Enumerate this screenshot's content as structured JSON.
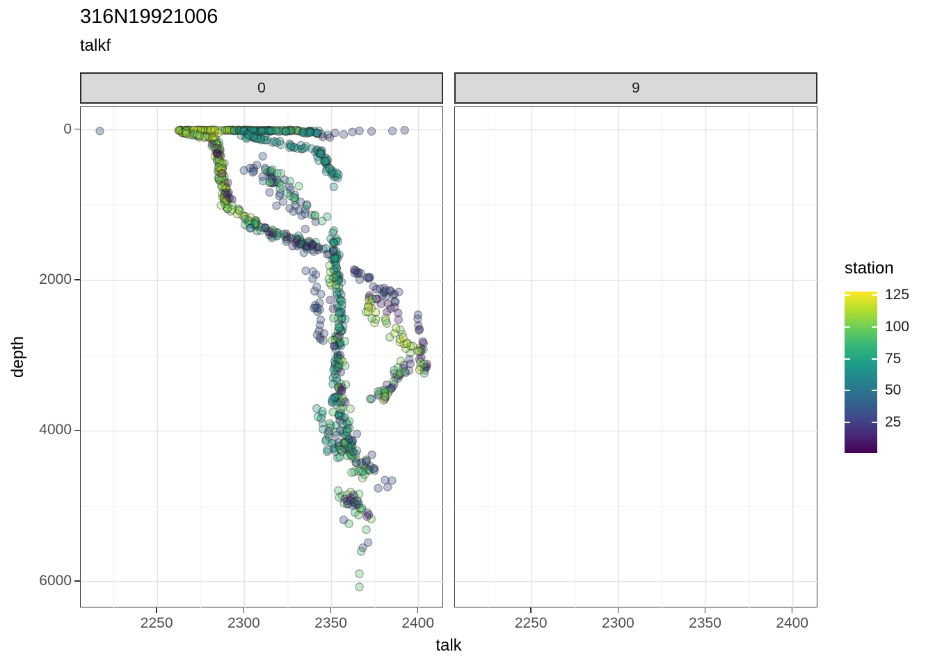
{
  "title": "316N19921006",
  "subtitle": "talkf",
  "x_axis": {
    "label": "talk",
    "ticks": [
      2250,
      2300,
      2350,
      2400
    ]
  },
  "y_axis": {
    "label": "depth",
    "ticks": [
      0,
      2000,
      4000,
      6000
    ]
  },
  "facets": [
    {
      "label": "0"
    },
    {
      "label": "9"
    }
  ],
  "legend": {
    "title": "station",
    "ticks": [
      125,
      100,
      75,
      50,
      25
    ],
    "domain": [
      1,
      128
    ]
  },
  "colors": {
    "viridis_stops": [
      "#440154",
      "#482878",
      "#3e4a89",
      "#31688e",
      "#26828e",
      "#1f9e89",
      "#35b779",
      "#6ece58",
      "#b5de2b",
      "#fde725"
    ],
    "strip_bg": "#d9d9d9",
    "panel_border": "#333333",
    "grid_major": "#e4e4e4",
    "grid_minor": "#efefef",
    "tick_text": "#4d4d4d",
    "point_stroke": "rgba(25,25,25,0.42)"
  },
  "chart_data": {
    "type": "scatter",
    "title": "316N19921006",
    "subtitle": "talkf",
    "xlabel": "talk",
    "ylabel": "depth",
    "color_label": "station",
    "facet_values": [
      "0",
      "9"
    ],
    "xlim": [
      2206,
      2414.5
    ],
    "ylim": [
      -302,
      6353
    ],
    "y_reversed": true,
    "x_minor": [
      2225,
      2275,
      2325,
      2375
    ],
    "y_minor": [
      1000,
      3000,
      5000
    ],
    "point_alpha": 0.35,
    "point_radius": 5.6,
    "seed": 42,
    "facet_0": {
      "clusters": [
        {
          "f": [
            2262,
            3
          ],
          "t": [
            2330,
            6
          ],
          "n": 110,
          "s": [
            3,
            9
          ],
          "st": [
            88,
            124
          ]
        },
        {
          "f": [
            2294,
            10
          ],
          "t": [
            2342,
            18
          ],
          "n": 48,
          "s": [
            4,
            11
          ],
          "st": [
            56,
            78
          ]
        },
        {
          "f": [
            2330,
            25
          ],
          "t": [
            2352,
            65
          ],
          "n": 13,
          "s": [
            3,
            16
          ],
          "st": [
            55,
            75
          ]
        },
        {
          "f": [
            2262,
            15
          ],
          "t": [
            2282,
            120
          ],
          "n": 28,
          "s": [
            3,
            28
          ],
          "st": [
            90,
            122
          ]
        },
        {
          "f": [
            2283,
            80
          ],
          "t": [
            2290,
            1000
          ],
          "n": 85,
          "s": [
            3,
            62
          ],
          "st": [
            92,
            124
          ]
        },
        {
          "f": [
            2283,
            150
          ],
          "t": [
            2293,
            950
          ],
          "n": 12,
          "s": [
            3.5,
            85
          ],
          "st": [
            5,
            16
          ]
        },
        {
          "f": [
            2290,
            1000
          ],
          "t": [
            2310,
            1330
          ],
          "n": 25,
          "s": [
            4,
            60
          ],
          "st": [
            90,
            120
          ]
        },
        {
          "f": [
            2298,
            70
          ],
          "t": [
            2343,
            280
          ],
          "n": 42,
          "s": [
            4.5,
            45
          ],
          "st": [
            56,
            78
          ]
        },
        {
          "f": [
            2343,
            280
          ],
          "t": [
            2354,
            720
          ],
          "n": 34,
          "s": [
            3,
            65
          ],
          "st": [
            56,
            78
          ]
        },
        {
          "f": [
            2300,
            1230
          ],
          "t": [
            2347,
            1620
          ],
          "n": 55,
          "s": [
            5,
            85
          ],
          "st": [
            55,
            100
          ]
        },
        {
          "f": [
            2305,
            1300
          ],
          "t": [
            2345,
            1600
          ],
          "n": 18,
          "s": [
            5,
            80
          ],
          "st": [
            5,
            20
          ]
        },
        {
          "f": [
            2302,
            330
          ],
          "t": [
            2340,
            1250
          ],
          "n": 44,
          "s": [
            9,
            170
          ],
          "st": [
            26,
            44
          ]
        },
        {
          "f": [
            2306,
            420
          ],
          "t": [
            2344,
            1150
          ],
          "n": 22,
          "s": [
            8,
            150
          ],
          "st": [
            80,
            96
          ]
        },
        {
          "f": [
            2336,
            1500
          ],
          "t": [
            2346,
            2950
          ],
          "n": 26,
          "s": [
            3.5,
            130
          ],
          "st": [
            26,
            40
          ]
        },
        {
          "f": [
            2351,
            1350
          ],
          "t": [
            2356,
            2600
          ],
          "n": 68,
          "s": [
            2.6,
            95
          ],
          "st": [
            60,
            78
          ]
        },
        {
          "f": [
            2354,
            2600
          ],
          "t": [
            2352,
            3620
          ],
          "n": 52,
          "s": [
            2.6,
            85
          ],
          "st": [
            60,
            78
          ]
        },
        {
          "f": [
            2354,
            3620
          ],
          "t": [
            2361,
            4280
          ],
          "n": 33,
          "s": [
            3,
            75
          ],
          "st": [
            60,
            80
          ]
        },
        {
          "f": [
            2349,
            1500
          ],
          "t": [
            2359,
            4050
          ],
          "n": 28,
          "s": [
            4,
            220
          ],
          "st": [
            86,
            112
          ]
        },
        {
          "f": [
            2349,
            1650
          ],
          "t": [
            2357,
            3850
          ],
          "n": 13,
          "s": [
            4,
            220
          ],
          "st": [
            6,
            18
          ]
        },
        {
          "f": [
            2359,
            1850
          ],
          "t": [
            2393,
            2320
          ],
          "n": 28,
          "s": [
            5,
            95
          ],
          "st": [
            20,
            36
          ]
        },
        {
          "f": [
            2364,
            2050
          ],
          "t": [
            2399,
            2650
          ],
          "n": 11,
          "s": [
            5,
            120
          ],
          "st": [
            4,
            14
          ]
        },
        {
          "f": [
            2368,
            2300
          ],
          "t": [
            2399,
            2950
          ],
          "n": 32,
          "s": [
            5,
            110
          ],
          "st": [
            95,
            122
          ]
        },
        {
          "f": [
            2399,
            2500
          ],
          "t": [
            2404,
            3250
          ],
          "n": 11,
          "s": [
            2.5,
            130
          ],
          "st": [
            20,
            34
          ]
        },
        {
          "f": [
            2400,
            2650
          ],
          "t": [
            2404,
            3150
          ],
          "n": 5,
          "s": [
            2.5,
            110
          ],
          "st": [
            4,
            12
          ]
        },
        {
          "f": [
            2396,
            2750
          ],
          "t": [
            2402,
            3250
          ],
          "n": 7,
          "s": [
            3,
            110
          ],
          "st": [
            95,
            115
          ]
        },
        {
          "f": [
            2394,
            3050
          ],
          "t": [
            2376,
            3640
          ],
          "n": 22,
          "s": [
            5,
            105
          ],
          "st": [
            22,
            36
          ]
        },
        {
          "f": [
            2392,
            3100
          ],
          "t": [
            2374,
            3680
          ],
          "n": 18,
          "s": [
            5,
            105
          ],
          "st": [
            88,
            112
          ]
        },
        {
          "f": [
            2342,
            3720
          ],
          "t": [
            2352,
            4320
          ],
          "n": 18,
          "s": [
            4,
            120
          ],
          "st": [
            62,
            78
          ]
        },
        {
          "f": [
            2346,
            3850
          ],
          "t": [
            2374,
            4620
          ],
          "n": 46,
          "s": [
            8,
            185
          ],
          "st": [
            78,
            104
          ]
        },
        {
          "f": [
            2352,
            3950
          ],
          "t": [
            2382,
            4720
          ],
          "n": 22,
          "s": [
            8,
            180
          ],
          "st": [
            24,
            38
          ]
        },
        {
          "f": [
            2356,
            4750
          ],
          "t": [
            2370,
            5150
          ],
          "n": 20,
          "s": [
            6,
            120
          ],
          "st": [
            84,
            104
          ]
        },
        {
          "f": [
            2354,
            4800
          ],
          "t": [
            2372,
            5150
          ],
          "n": 8,
          "s": [
            6,
            110
          ],
          "st": [
            25,
            36
          ]
        },
        {
          "f": [
            2357,
            4850
          ],
          "t": [
            2368,
            5100
          ],
          "n": 5,
          "s": [
            5,
            100
          ],
          "st": [
            8,
            16
          ]
        }
      ],
      "points": [
        [
          2217,
          15,
          32
        ],
        [
          2352,
          40,
          26
        ],
        [
          2357,
          60,
          30
        ],
        [
          2345,
          92,
          9
        ],
        [
          2349,
          100,
          13
        ],
        [
          2362,
          28,
          27
        ],
        [
          2366,
          12,
          29
        ],
        [
          2373,
          20,
          26
        ],
        [
          2385,
          14,
          30
        ],
        [
          2392,
          4,
          27
        ],
        [
          2360,
          5230,
          88
        ],
        [
          2357,
          5180,
          30
        ],
        [
          2370,
          5310,
          92
        ],
        [
          2371,
          5480,
          30
        ],
        [
          2368,
          5550,
          28
        ],
        [
          2367,
          5600,
          90
        ],
        [
          2366,
          5895,
          94
        ],
        [
          2366,
          6070,
          92
        ]
      ]
    },
    "facet_9": {
      "clusters": [],
      "points": []
    }
  }
}
